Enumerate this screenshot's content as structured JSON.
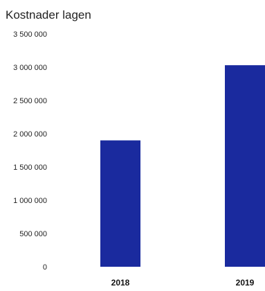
{
  "chart_data": {
    "type": "bar",
    "title": "Kostnader lagen",
    "categories": [
      "2018",
      "2019"
    ],
    "values": [
      1900000,
      3030000
    ],
    "ylim": [
      0,
      3500000
    ],
    "yticks": [
      0,
      500000,
      1000000,
      1500000,
      2000000,
      2500000,
      3000000,
      3500000
    ],
    "ytick_labels": [
      "0",
      "500 000",
      "1 000 000",
      "1 500 000",
      "2 000 000",
      "2 500 000",
      "3 000 000",
      "3 500 000"
    ],
    "grid": false,
    "legend": "none",
    "bar_color": "#1a2a9e"
  }
}
